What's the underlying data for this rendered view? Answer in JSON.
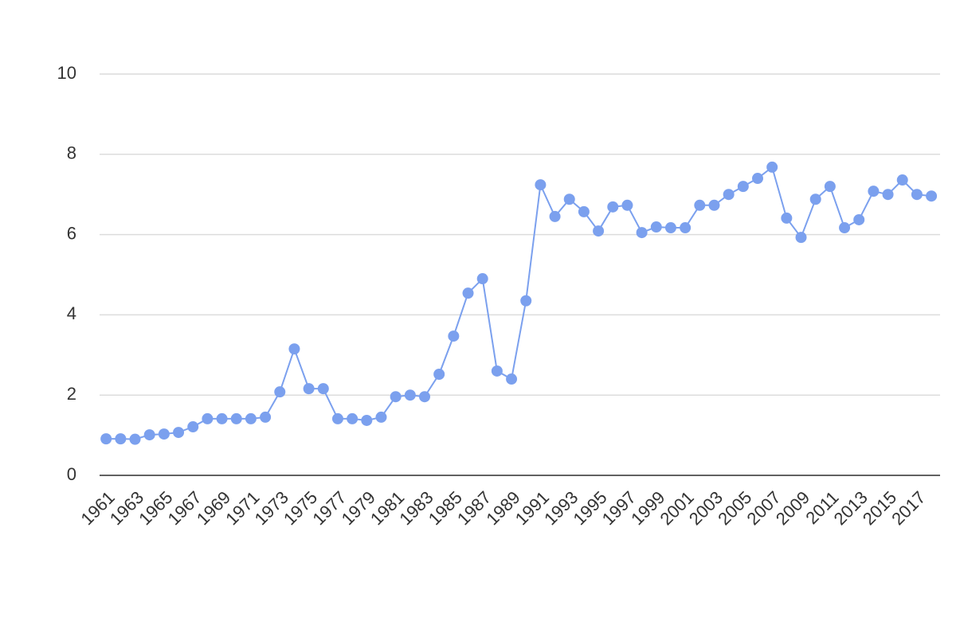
{
  "chart_data": {
    "type": "line",
    "x": [
      1961,
      1962,
      1963,
      1964,
      1965,
      1966,
      1967,
      1968,
      1969,
      1970,
      1971,
      1972,
      1973,
      1974,
      1975,
      1976,
      1977,
      1978,
      1979,
      1980,
      1981,
      1982,
      1983,
      1984,
      1985,
      1986,
      1987,
      1988,
      1989,
      1990,
      1991,
      1992,
      1993,
      1994,
      1995,
      1996,
      1997,
      1998,
      1999,
      2000,
      2001,
      2002,
      2003,
      2004,
      2005,
      2006,
      2007,
      2008,
      2009,
      2010,
      2011,
      2012,
      2013,
      2014,
      2015,
      2016,
      2017,
      2018
    ],
    "values": [
      0.91,
      0.91,
      0.9,
      1.01,
      1.03,
      1.07,
      1.21,
      1.41,
      1.41,
      1.41,
      1.41,
      1.45,
      2.08,
      3.15,
      2.16,
      2.16,
      1.41,
      1.41,
      1.37,
      1.45,
      1.96,
      2.0,
      1.96,
      2.52,
      3.47,
      4.54,
      4.9,
      2.6,
      2.4,
      4.35,
      7.24,
      6.45,
      6.88,
      6.57,
      6.09,
      6.69,
      6.73,
      6.05,
      6.19,
      6.17,
      6.17,
      6.73,
      6.73,
      7.0,
      7.2,
      7.4,
      7.68,
      6.41,
      5.93,
      6.88,
      7.2,
      6.17,
      6.37,
      7.08,
      7.0,
      7.36,
      7.0,
      6.96
    ],
    "color": "#7ba0ee",
    "xlim": [
      1960.55,
      2018.6
    ],
    "xticks": [
      1961,
      1963,
      1965,
      1967,
      1969,
      1971,
      1973,
      1975,
      1977,
      1979,
      1981,
      1983,
      1985,
      1987,
      1989,
      1991,
      1993,
      1995,
      1997,
      1999,
      2001,
      2003,
      2005,
      2007,
      2009,
      2011,
      2013,
      2015,
      2017
    ],
    "ylim": [
      0,
      10
    ],
    "yticks": [
      0,
      2,
      4,
      6,
      8,
      10
    ],
    "grid": true
  }
}
